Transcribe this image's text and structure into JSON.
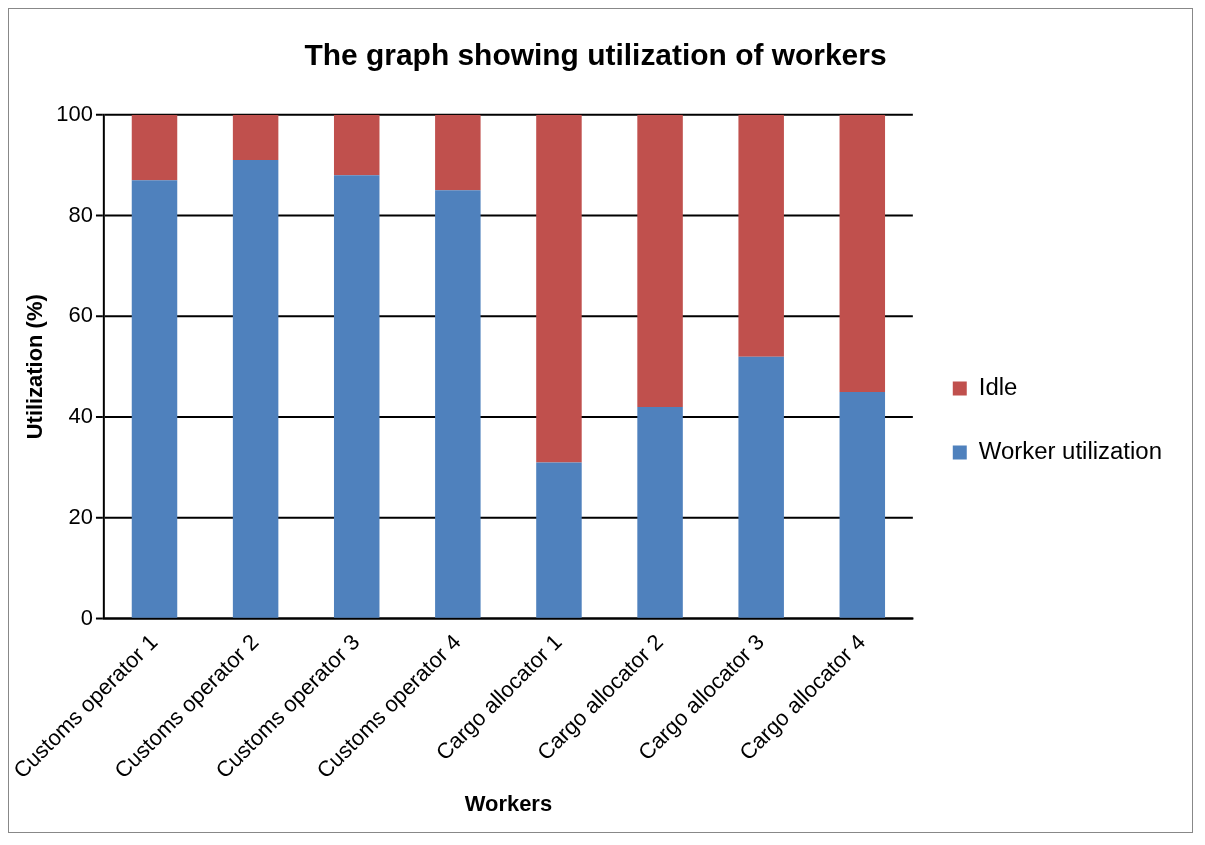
{
  "chart_data": {
    "type": "bar",
    "title": "The graph showing utilization of workers",
    "xlabel": "Workers",
    "ylabel": "Utilization (%)",
    "categories": [
      "Customs operator 1",
      "Customs operator 2",
      "Customs operator 3",
      "Customs operator 4",
      "Cargo allocator 1",
      "Cargo allocator 2",
      "Cargo allocator 3",
      "Cargo allocator 4"
    ],
    "series": [
      {
        "name": "Worker utilization",
        "color": "#4f81bd",
        "values": [
          87,
          91,
          88,
          85,
          31,
          42,
          52,
          45
        ]
      },
      {
        "name": "Idle",
        "color": "#c0504d",
        "values": [
          13,
          9,
          12,
          15,
          69,
          58,
          48,
          55
        ]
      }
    ],
    "stacked": true,
    "ylim": [
      0,
      100
    ],
    "yticks": [
      0,
      20,
      40,
      60,
      80,
      100
    ],
    "grid": "y",
    "legend": "right"
  }
}
